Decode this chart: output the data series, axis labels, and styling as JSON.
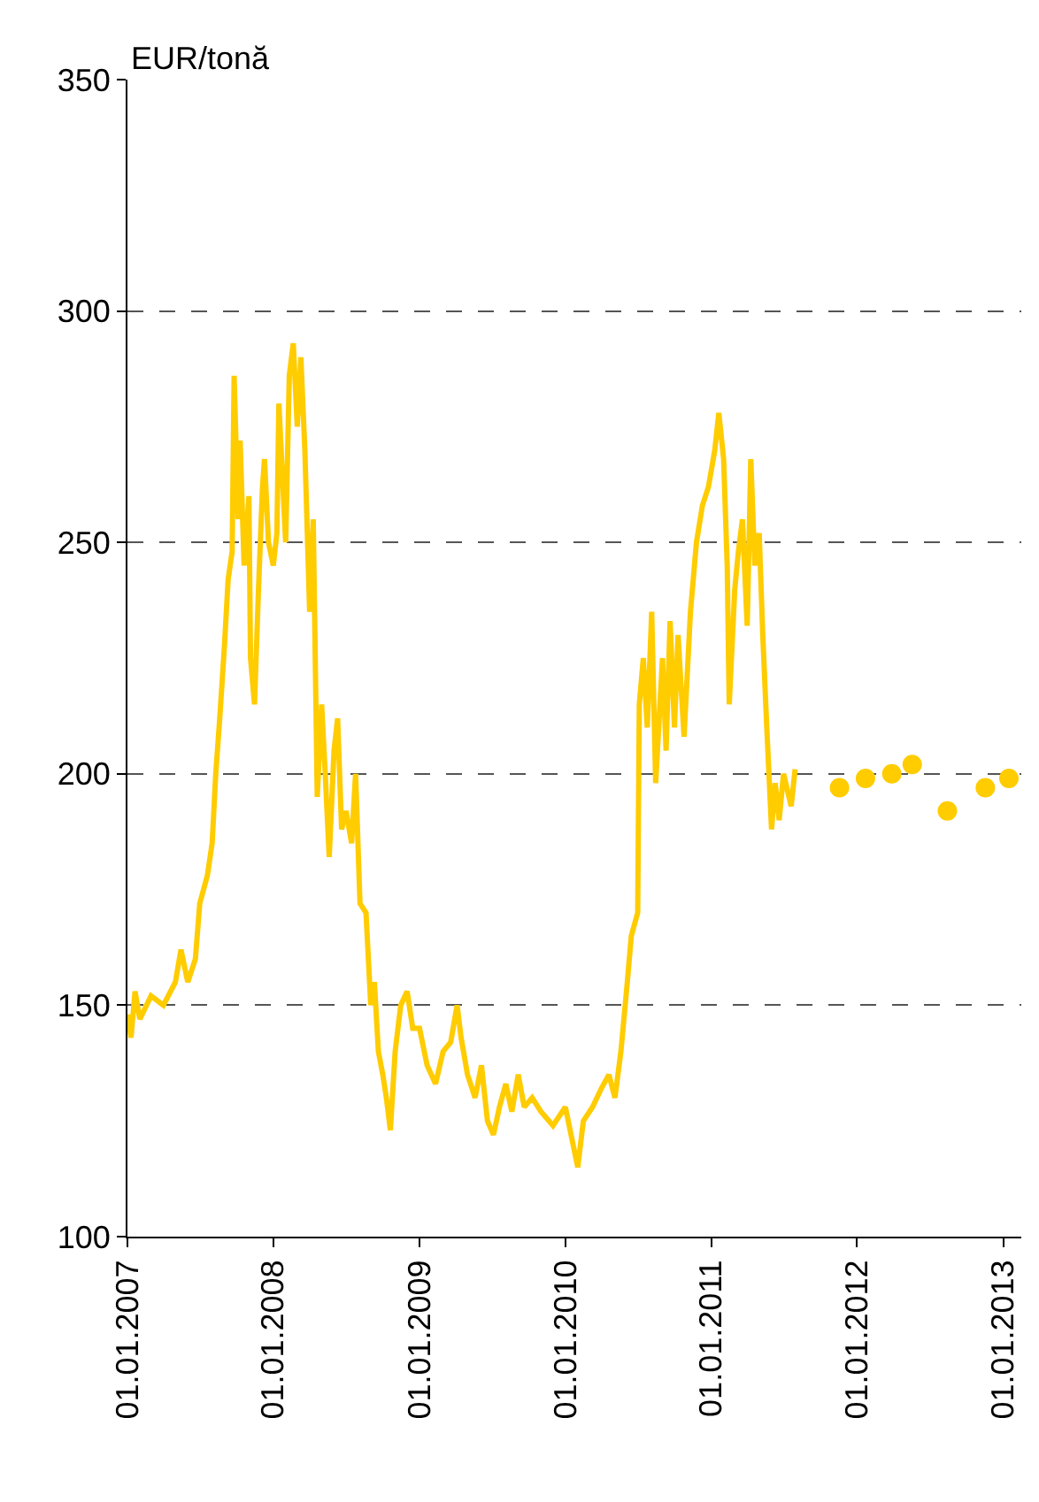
{
  "chart_data": {
    "type": "line",
    "ylabel": "EUR/tonă",
    "xlim": [
      "2007-01-01",
      "2013-02-15"
    ],
    "ylim": [
      100,
      350
    ],
    "yticks": [
      100,
      150,
      200,
      250,
      300,
      350
    ],
    "xticks": [
      {
        "value": "2007-01-01",
        "label": "01.01.2007"
      },
      {
        "value": "2008-01-01",
        "label": "01.01.2008"
      },
      {
        "value": "2009-01-01",
        "label": "01.01.2009"
      },
      {
        "value": "2010-01-01",
        "label": "01.01.2010"
      },
      {
        "value": "2011-01-01",
        "label": "01.01.2011"
      },
      {
        "value": "2012-01-01",
        "label": "01.01.2012"
      },
      {
        "value": "2013-01-01",
        "label": "01.01.2013"
      }
    ],
    "grid": "y",
    "series": [
      {
        "color": "#ffcc00",
        "line_style": "solid",
        "x": [
          "2007-01-01",
          "2007-01-10",
          "2007-01-20",
          "2007-02-01",
          "2007-03-01",
          "2007-04-01",
          "2007-05-01",
          "2007-05-15",
          "2007-06-01",
          "2007-06-20",
          "2007-07-01",
          "2007-07-20",
          "2007-08-01",
          "2007-08-10",
          "2007-08-20",
          "2007-09-01",
          "2007-09-10",
          "2007-09-20",
          "2007-09-25",
          "2007-10-05",
          "2007-10-10",
          "2007-10-20",
          "2007-11-01",
          "2007-11-05",
          "2007-11-15",
          "2007-11-25",
          "2007-12-05",
          "2007-12-10",
          "2007-12-20",
          "2008-01-01",
          "2008-01-10",
          "2008-01-15",
          "2008-02-01",
          "2008-02-10",
          "2008-02-20",
          "2008-03-01",
          "2008-03-10",
          "2008-03-20",
          "2008-04-01",
          "2008-04-10",
          "2008-04-20",
          "2008-05-01",
          "2008-05-10",
          "2008-05-20",
          "2008-06-01",
          "2008-06-10",
          "2008-06-20",
          "2008-07-01",
          "2008-07-15",
          "2008-07-25",
          "2008-08-05",
          "2008-08-20",
          "2008-09-01",
          "2008-09-10",
          "2008-09-20",
          "2008-10-01",
          "2008-10-10",
          "2008-10-20",
          "2008-11-01",
          "2008-11-15",
          "2008-12-01",
          "2008-12-15",
          "2009-01-01",
          "2009-01-20",
          "2009-02-10",
          "2009-03-01",
          "2009-03-20",
          "2009-04-05",
          "2009-04-15",
          "2009-05-01",
          "2009-05-20",
          "2009-06-05",
          "2009-06-20",
          "2009-07-05",
          "2009-07-20",
          "2009-08-05",
          "2009-08-20",
          "2009-09-05",
          "2009-09-20",
          "2009-10-10",
          "2009-11-01",
          "2009-12-01",
          "2010-01-01",
          "2010-01-20",
          "2010-02-01",
          "2010-02-15",
          "2010-03-10",
          "2010-04-01",
          "2010-04-20",
          "2010-05-05",
          "2010-05-20",
          "2010-06-05",
          "2010-06-15",
          "2010-07-01",
          "2010-07-05",
          "2010-07-15",
          "2010-07-25",
          "2010-08-05",
          "2010-08-15",
          "2010-09-01",
          "2010-09-10",
          "2010-09-20",
          "2010-10-01",
          "2010-10-10",
          "2010-10-25",
          "2010-11-10",
          "2010-11-25",
          "2010-12-10",
          "2010-12-25",
          "2011-01-10",
          "2011-01-20",
          "2011-02-01",
          "2011-02-10",
          "2011-02-15",
          "2011-03-01",
          "2011-03-10",
          "2011-03-20",
          "2011-04-01",
          "2011-04-10",
          "2011-04-20",
          "2011-05-01",
          "2011-05-10",
          "2011-05-20",
          "2011-06-01",
          "2011-06-10",
          "2011-06-20",
          "2011-07-01",
          "2011-07-20",
          "2011-07-30"
        ],
        "values": [
          148,
          143,
          153,
          147,
          152,
          150,
          155,
          162,
          155,
          160,
          172,
          178,
          185,
          200,
          212,
          228,
          242,
          248,
          286,
          255,
          272,
          245,
          260,
          225,
          215,
          240,
          262,
          268,
          250,
          245,
          252,
          280,
          250,
          286,
          293,
          275,
          290,
          270,
          235,
          255,
          195,
          215,
          200,
          182,
          205,
          212,
          188,
          192,
          185,
          200,
          172,
          170,
          150,
          155,
          140,
          135,
          130,
          123,
          140,
          150,
          153,
          145,
          145,
          137,
          133,
          140,
          142,
          150,
          143,
          135,
          130,
          137,
          125,
          122,
          128,
          133,
          127,
          135,
          128,
          130,
          127,
          124,
          128,
          120,
          115,
          125,
          128,
          132,
          135,
          130,
          140,
          155,
          165,
          170,
          215,
          225,
          210,
          235,
          198,
          225,
          205,
          233,
          210,
          230,
          208,
          235,
          250,
          258,
          262,
          270,
          278,
          268,
          245,
          215,
          240,
          248,
          255,
          232,
          268,
          245,
          252,
          230,
          210,
          188,
          198,
          190,
          200,
          193,
          201
        ]
      },
      {
        "type": "scatter",
        "color": "#ffcc00",
        "marker": "circle",
        "x": [
          "2011-11-18",
          "2012-01-22",
          "2012-03-28",
          "2012-05-18",
          "2012-08-14",
          "2012-11-17",
          "2013-01-15"
        ],
        "values": [
          197,
          199,
          200,
          202,
          192,
          197,
          199
        ]
      }
    ]
  }
}
